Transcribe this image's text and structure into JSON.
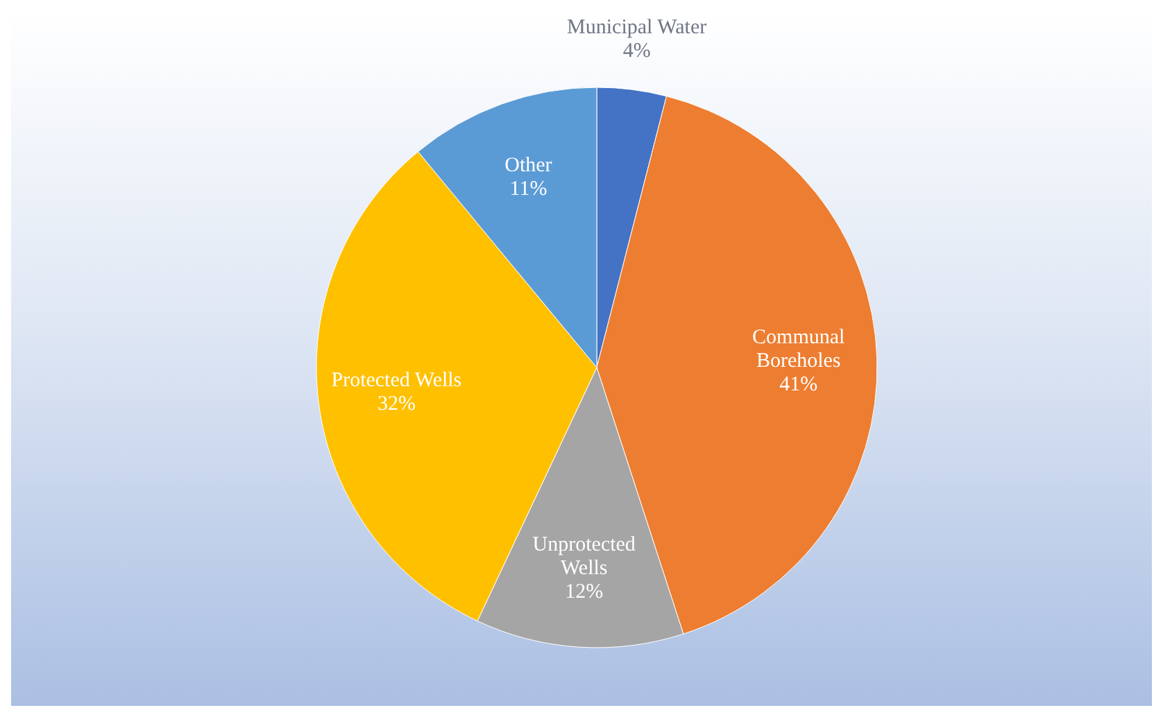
{
  "chart_data": {
    "type": "pie",
    "categories": [
      "Municipal Water",
      "Communal Boreholes",
      "Unprotected Wells",
      "Protected Wells",
      "Other"
    ],
    "values": [
      4,
      41,
      12,
      32,
      11
    ],
    "value_labels": [
      "4%",
      "41%",
      "12%",
      "32%",
      "11%"
    ],
    "colors": [
      "#4472c4",
      "#ed7d31",
      "#a5a5a5",
      "#ffc000",
      "#5b9bd5"
    ],
    "legend": false
  }
}
